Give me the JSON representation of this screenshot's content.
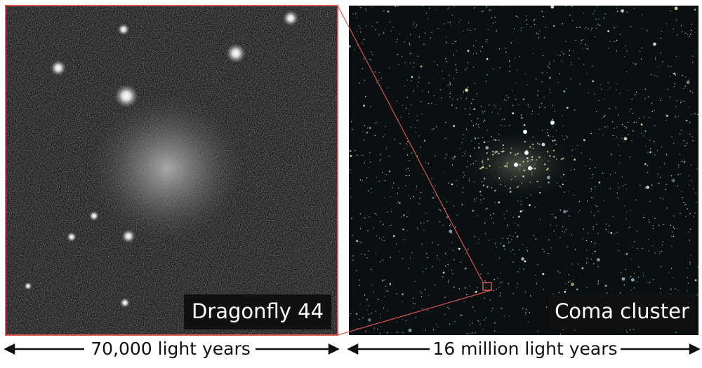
{
  "panels": [
    {
      "label": "Dragonfly 44",
      "scale": "70,000 light years"
    },
    {
      "label": "Coma cluster",
      "scale": "16 million light years"
    }
  ]
}
